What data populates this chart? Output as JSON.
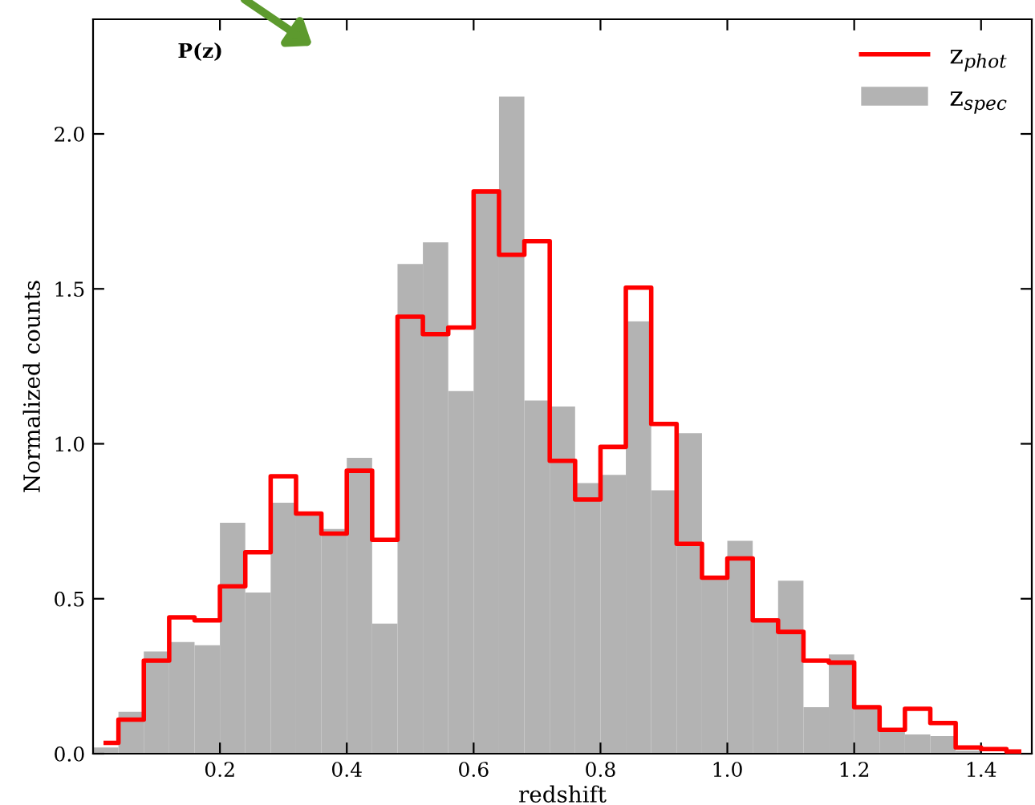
{
  "chart_data": {
    "type": "histogram",
    "xlabel": "redshift",
    "ylabel": "Normalized counts",
    "annotations": [
      "P(z)"
    ],
    "bins": [
      0.0,
      0.04,
      0.08,
      0.12,
      0.16,
      0.2,
      0.24,
      0.28,
      0.32,
      0.36,
      0.4,
      0.44,
      0.48,
      0.52,
      0.56,
      0.6,
      0.64,
      0.68,
      0.72,
      0.76,
      0.8,
      0.84,
      0.88,
      0.92,
      0.96,
      1.0,
      1.04,
      1.08,
      1.12,
      1.16,
      1.2,
      1.24,
      1.28,
      1.32,
      1.36,
      1.4,
      1.44,
      1.48
    ],
    "series": [
      {
        "name": "z$_{phot}$",
        "type": "step",
        "color": "#ff0000",
        "x": [
          0.02,
          0.06,
          0.1,
          0.14,
          0.18,
          0.22,
          0.26,
          0.3,
          0.34,
          0.38,
          0.42,
          0.46,
          0.5,
          0.54,
          0.58,
          0.62,
          0.66,
          0.7,
          0.74,
          0.78,
          0.82,
          0.86,
          0.9,
          0.94,
          0.98,
          1.02,
          1.06,
          1.1,
          1.14,
          1.18,
          1.22,
          1.26,
          1.3,
          1.34,
          1.38,
          1.42,
          1.46
        ],
        "values": [
          0.035,
          0.11,
          0.3,
          0.44,
          0.43,
          0.54,
          0.65,
          0.895,
          0.775,
          0.71,
          0.913,
          0.69,
          1.41,
          1.354,
          1.375,
          1.814,
          1.61,
          1.654,
          0.945,
          0.82,
          0.99,
          1.504,
          1.064,
          0.677,
          0.568,
          0.63,
          0.43,
          0.393,
          0.3,
          0.294,
          0.15,
          0.077,
          0.145,
          0.099,
          0.02,
          0.015,
          0.007
        ]
      },
      {
        "name": "z$_{spec}$",
        "color": "#b3b3b3",
        "values": [
          0.02,
          0.135,
          0.33,
          0.36,
          0.35,
          0.745,
          0.52,
          0.81,
          0.78,
          0.725,
          0.955,
          0.42,
          1.58,
          1.65,
          1.17,
          1.82,
          2.12,
          1.14,
          1.12,
          0.873,
          0.9,
          1.395,
          0.85,
          1.034,
          0.57,
          0.687,
          0.43,
          0.558,
          0.15,
          0.32,
          0.155,
          0.07,
          0.062,
          0.057,
          0.01,
          null,
          null
        ]
      }
    ],
    "xlim": [
      0.0,
      1.48
    ],
    "ylim": [
      0.0,
      2.37
    ],
    "xticks": [
      0.2,
      0.4,
      0.6,
      0.8,
      {
        "value": 1,
        "label": "1.0"
      },
      1.2,
      1.4
    ],
    "yticks": [
      {
        "value": 0,
        "label": "0.0"
      },
      {
        "value": 0.5,
        "label": "0.5"
      },
      {
        "value": 1,
        "label": "1.0"
      },
      {
        "value": 1.5,
        "label": "1.5"
      },
      {
        "value": 2,
        "label": "2.0"
      }
    ],
    "legend": "top right",
    "grid": false
  }
}
